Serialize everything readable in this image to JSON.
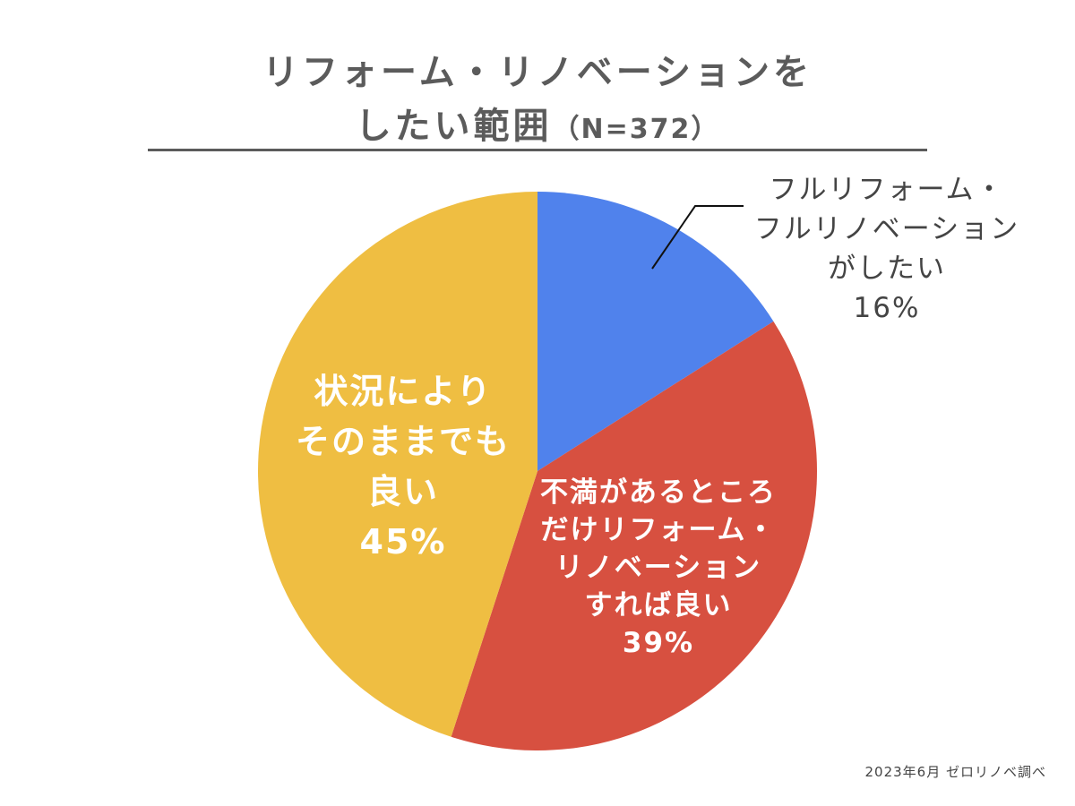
{
  "title": {
    "line1": "リフォーム・リノベーションを",
    "line2": "したい範囲",
    "n_label": "（N=372）"
  },
  "source_note": "2023年6月 ゼロリノベ調べ",
  "chart_data": {
    "type": "pie",
    "title": "リフォーム・リノベーションをしたい範囲（N=372）",
    "unit": "%",
    "start_angle_deg": 0,
    "direction": "clockwise",
    "slices": [
      {
        "label_lines": [
          "フルリフォーム・",
          "フルリノベーション",
          "がしたい"
        ],
        "value": 16,
        "value_label": "16%",
        "color": "#5082ec",
        "label_position": "outside-top-right",
        "label_color": "#444444"
      },
      {
        "label_lines": [
          "不満があるところ",
          "だけリフォーム・",
          "リノベーション",
          "すれば良い"
        ],
        "value": 39,
        "value_label": "39%",
        "color": "#d75040",
        "label_position": "inside",
        "label_color": "#ffffff"
      },
      {
        "label_lines": [
          "状況により",
          "そのままでも",
          "良い"
        ],
        "value": 45,
        "value_label": "45%",
        "color": "#efbe42",
        "label_position": "inside",
        "label_color": "#ffffff"
      }
    ]
  }
}
